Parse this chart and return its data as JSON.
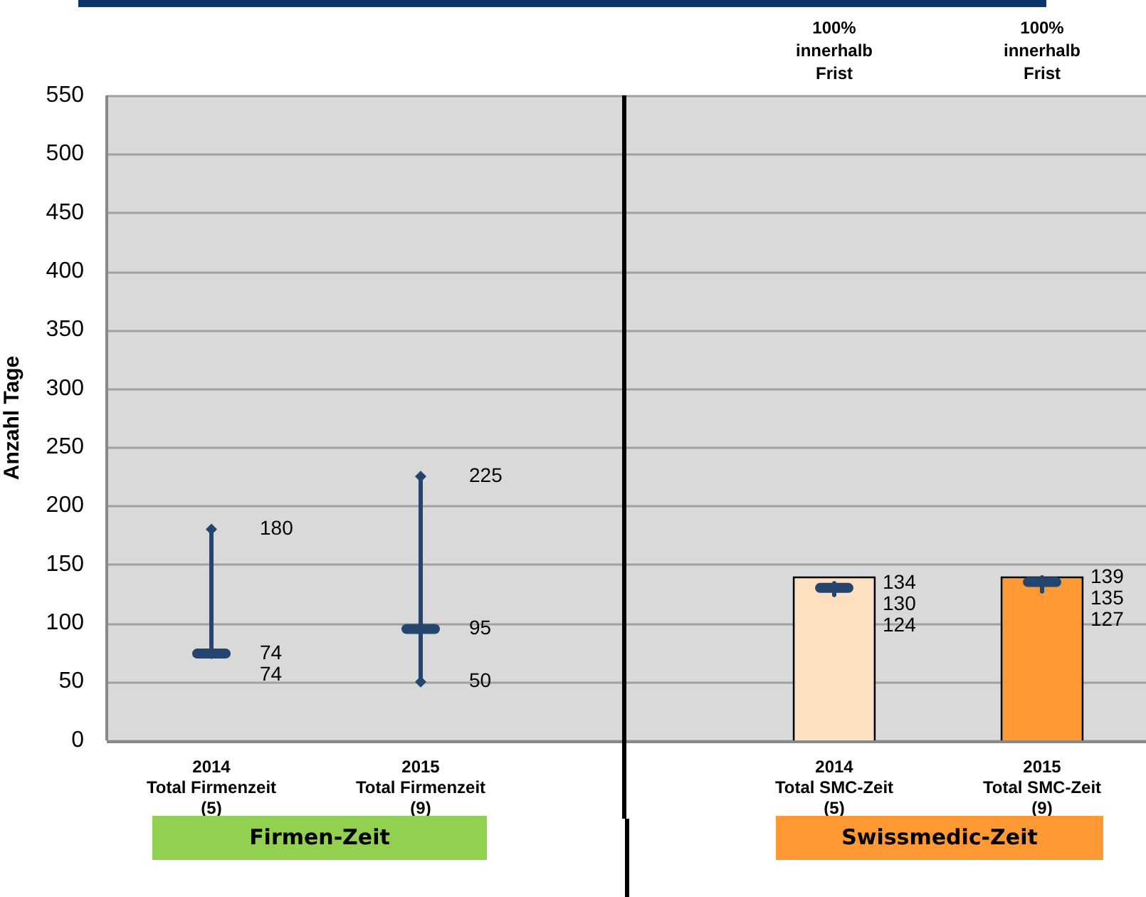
{
  "chart_data": [
    {
      "type": "box",
      "ylabel": "Anzahl Tage",
      "categories": [
        "2014\nTotal Firmenzeit\n(5)",
        "2015\nTotal Firmenzeit\n(9)"
      ],
      "series": [
        {
          "color": "#24466e",
          "boxes": [
            {
              "low": 74,
              "q1": 74,
              "median": 74,
              "q3": 74,
              "high": 180
            },
            {
              "low": 50,
              "q1": 95,
              "median": 95,
              "q3": 95,
              "high": 225
            }
          ]
        }
      ],
      "ylim": [
        0,
        550
      ],
      "yticks": [
        0,
        50,
        100,
        150,
        200,
        250,
        300,
        350,
        400,
        450,
        500,
        550
      ],
      "grid": "y",
      "marker": "diamond",
      "annotations": [
        {
          "text": "180",
          "x": "2014\nTotal Firmenzeit\n(5)",
          "y": 180
        },
        {
          "text": "74",
          "x": "2014\nTotal Firmenzeit\n(5)",
          "y": 74
        },
        {
          "text": "74",
          "x": "2014\nTotal Firmenzeit\n(5)",
          "y": 74
        },
        {
          "text": "225",
          "x": "2015\nTotal Firmenzeit\n(9)",
          "y": 225
        },
        {
          "text": "95",
          "x": "2015\nTotal Firmenzeit\n(9)",
          "y": 95
        },
        {
          "text": "50",
          "x": "2015\nTotal Firmenzeit\n(9)",
          "y": 50
        },
        "Firmen-Zeit"
      ]
    },
    {
      "type": "bar",
      "categories": [
        "2014\nTotal SMC-Zeit\n(5)",
        "2015\nTotal SMC-Zeit\n(9)"
      ],
      "series": [
        {
          "colors": [
            "#fde0c0",
            "#ff9933"
          ],
          "values": [
            140,
            140
          ]
        },
        {
          "type": "box",
          "color": "#24466e",
          "boxes": [
            {
              "low": 124,
              "q1": 130,
              "median": 130,
              "q3": 130,
              "high": 134
            },
            {
              "low": 127,
              "q1": 135,
              "median": 135,
              "q3": 135,
              "high": 139
            }
          ]
        }
      ],
      "ylim": [
        0,
        550
      ],
      "yticks": [
        0,
        50,
        100,
        150,
        200,
        250,
        300,
        350,
        400,
        450,
        500,
        550
      ],
      "grid": "y",
      "tick_labels": "x",
      "annotations": [
        {
          "text": "134",
          "x": "2014\nTotal SMC-Zeit\n(5)",
          "y": 134
        },
        {
          "text": "130",
          "x": "2014\nTotal SMC-Zeit\n(5)",
          "y": 130
        },
        {
          "text": "124",
          "x": "2014\nTotal SMC-Zeit\n(5)",
          "y": 124
        },
        {
          "text": "139",
          "x": "2015\nTotal SMC-Zeit\n(9)",
          "y": 139
        },
        {
          "text": "135",
          "x": "2015\nTotal SMC-Zeit\n(9)",
          "y": 135
        },
        {
          "text": "127",
          "x": "2015\nTotal SMC-Zeit\n(9)",
          "y": 127
        },
        "100%\ninnerhalb\nFrist",
        "100%\ninnerhalb\nFrist",
        "Swissmedic-Zeit"
      ]
    }
  ]
}
